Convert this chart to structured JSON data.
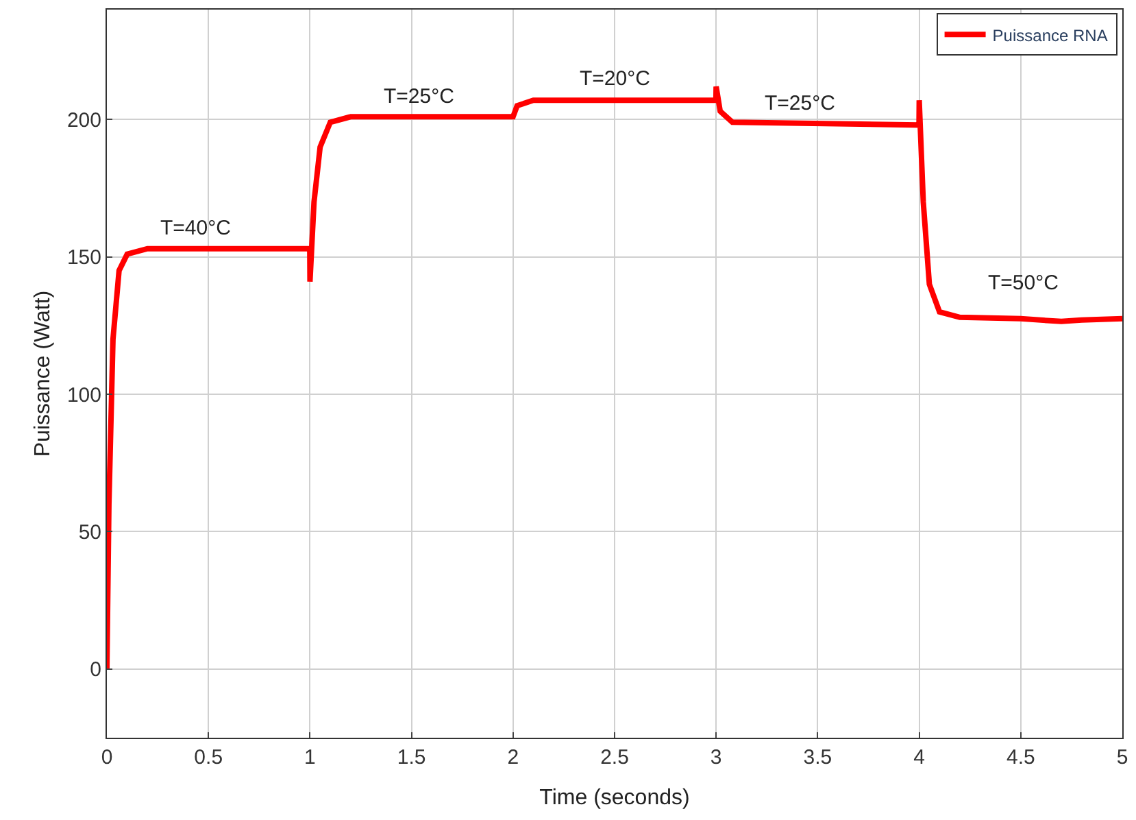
{
  "chart_data": {
    "type": "line",
    "xlabel": "Time (seconds)",
    "ylabel": "Puissance (Watt)",
    "xlim": [
      0,
      5
    ],
    "xticks": [
      0,
      0.5,
      1,
      1.5,
      2,
      2.5,
      3,
      3.5,
      4,
      4.5,
      5
    ],
    "ylim": [
      -25,
      240
    ],
    "yticks": [
      0,
      50,
      100,
      150,
      200
    ],
    "grid": true,
    "legend": "top right",
    "series": [
      {
        "name": "Puissance RNA",
        "color": "#ff0000",
        "x": [
          0,
          0.01,
          0.03,
          0.06,
          0.1,
          0.2,
          0.999,
          1.0,
          1.02,
          1.05,
          1.1,
          1.2,
          1.999,
          2.0,
          2.02,
          2.1,
          2.999,
          3.0,
          3.02,
          3.08,
          3.999,
          4.0,
          4.02,
          4.05,
          4.1,
          4.2,
          4.5,
          4.7,
          4.8,
          5
        ],
        "values": [
          0,
          60,
          120,
          145,
          151,
          153,
          153,
          141,
          170,
          190,
          199,
          201,
          201,
          201,
          205,
          207,
          207,
          212,
          203,
          199,
          198,
          207,
          170,
          140,
          130,
          128,
          127.5,
          126.5,
          127,
          127.5
        ]
      }
    ],
    "annotations": [
      "T=40°C",
      "T=25°C",
      "T=20°C",
      "T=25°C",
      "T=50°C"
    ]
  }
}
